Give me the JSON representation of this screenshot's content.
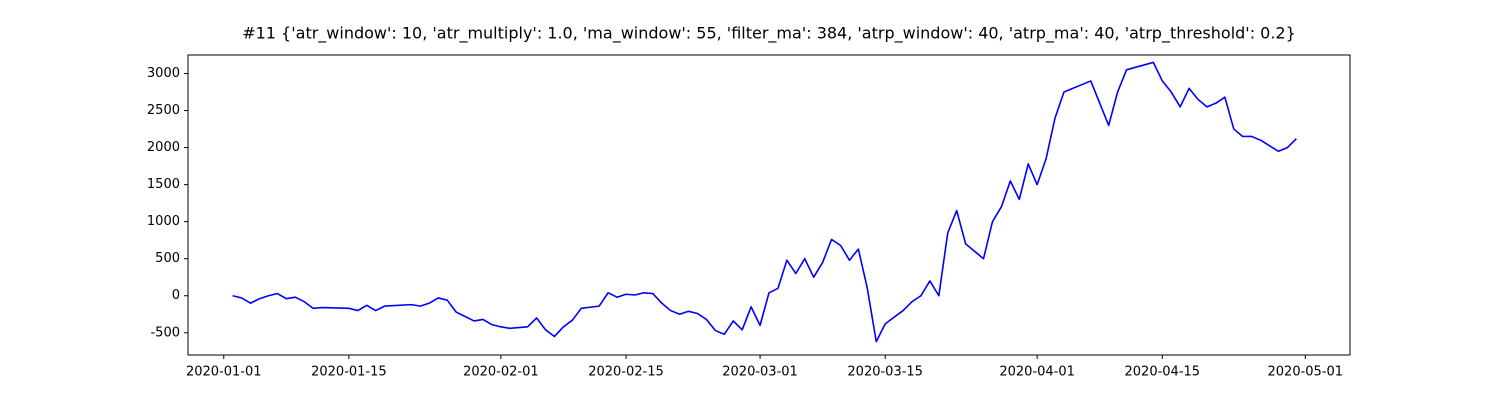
{
  "chart_data": {
    "type": "line",
    "title": "#11 {'atr_window': 10, 'atr_multiply': 1.0, 'ma_window': 55, 'filter_ma': 384, 'atrp_window': 40, 'atrp_ma': 40, 'atrp_threshold': 0.2}",
    "x": [
      "2020-01-02",
      "2020-01-03",
      "2020-01-04",
      "2020-01-05",
      "2020-01-06",
      "2020-01-07",
      "2020-01-08",
      "2020-01-09",
      "2020-01-10",
      "2020-01-11",
      "2020-01-12",
      "2020-01-15",
      "2020-01-16",
      "2020-01-17",
      "2020-01-18",
      "2020-01-19",
      "2020-01-22",
      "2020-01-23",
      "2020-01-24",
      "2020-01-25",
      "2020-01-26",
      "2020-01-27",
      "2020-01-28",
      "2020-01-29",
      "2020-01-30",
      "2020-01-31",
      "2020-02-01",
      "2020-02-02",
      "2020-02-04",
      "2020-02-05",
      "2020-02-06",
      "2020-02-07",
      "2020-02-08",
      "2020-02-09",
      "2020-02-10",
      "2020-02-12",
      "2020-02-13",
      "2020-02-14",
      "2020-02-15",
      "2020-02-16",
      "2020-02-17",
      "2020-02-18",
      "2020-02-19",
      "2020-02-20",
      "2020-02-21",
      "2020-02-22",
      "2020-02-23",
      "2020-02-24",
      "2020-02-25",
      "2020-02-26",
      "2020-02-27",
      "2020-02-28",
      "2020-02-29",
      "2020-03-01",
      "2020-03-02",
      "2020-03-03",
      "2020-03-04",
      "2020-03-05",
      "2020-03-06",
      "2020-03-07",
      "2020-03-08",
      "2020-03-09",
      "2020-03-10",
      "2020-03-11",
      "2020-03-12",
      "2020-03-13",
      "2020-03-14",
      "2020-03-15",
      "2020-03-17",
      "2020-03-18",
      "2020-03-19",
      "2020-03-20",
      "2020-03-21",
      "2020-03-22",
      "2020-03-23",
      "2020-03-24",
      "2020-03-26",
      "2020-03-27",
      "2020-03-28",
      "2020-03-29",
      "2020-03-30",
      "2020-03-31",
      "2020-04-01",
      "2020-04-02",
      "2020-04-03",
      "2020-04-04",
      "2020-04-07",
      "2020-04-08",
      "2020-04-09",
      "2020-04-10",
      "2020-04-11",
      "2020-04-14",
      "2020-04-15",
      "2020-04-16",
      "2020-04-17",
      "2020-04-18",
      "2020-04-19",
      "2020-04-20",
      "2020-04-21",
      "2020-04-22",
      "2020-04-23",
      "2020-04-24",
      "2020-04-25",
      "2020-04-26",
      "2020-04-28",
      "2020-04-29",
      "2020-04-30"
    ],
    "values": [
      0,
      -30,
      -100,
      -40,
      0,
      30,
      -40,
      -20,
      -80,
      -170,
      -160,
      -170,
      -200,
      -130,
      -200,
      -140,
      -120,
      -140,
      -100,
      -30,
      -60,
      -220,
      -280,
      -340,
      -320,
      -390,
      -420,
      -440,
      -420,
      -300,
      -460,
      -550,
      -420,
      -330,
      -170,
      -140,
      40,
      -20,
      20,
      10,
      40,
      30,
      -100,
      -200,
      -250,
      -210,
      -240,
      -320,
      -470,
      -520,
      -340,
      -460,
      -150,
      -400,
      40,
      100,
      480,
      300,
      500,
      250,
      450,
      760,
      680,
      480,
      630,
      100,
      -620,
      -380,
      -200,
      -80,
      0,
      200,
      0,
      850,
      1150,
      700,
      500,
      1000,
      1200,
      1550,
      1300,
      1780,
      1500,
      1850,
      2400,
      2750,
      2900,
      2600,
      2300,
      2750,
      3050,
      3150,
      2900,
      2750,
      2550,
      2800,
      2650,
      2550,
      2600,
      2680,
      2250,
      2150,
      2150,
      2100,
      1950,
      2000,
      2120
    ],
    "color": "#0000ff",
    "xlim": [
      "2019-12-28",
      "2020-05-06"
    ],
    "xticks": [
      "2020-01-01",
      "2020-01-15",
      "2020-02-01",
      "2020-02-15",
      "2020-03-01",
      "2020-03-15",
      "2020-04-01",
      "2020-04-15",
      "2020-05-01"
    ],
    "ylim": [
      -800,
      3250
    ],
    "yticks": [
      -500,
      0,
      500,
      1000,
      1500,
      2000,
      2500,
      3000
    ]
  }
}
